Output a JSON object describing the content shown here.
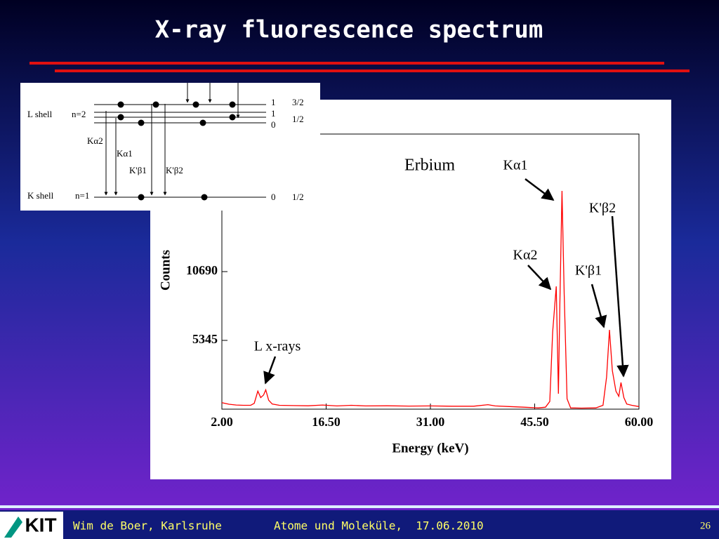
{
  "title": "X-ray fluorescence spectrum",
  "footer": {
    "logo": "KIT",
    "author": "Wim de Boer, Karlsruhe",
    "course": "Atome und Moleküle,  17.06.2010",
    "page": "26"
  },
  "diagram": {
    "l_shell": "L shell",
    "l_n": "n=2",
    "k_shell": "K shell",
    "k_n": "n=1",
    "l_levels": [
      [
        "1",
        "3/2"
      ],
      [
        "1",
        "1/2"
      ],
      [
        "0",
        ""
      ]
    ],
    "k_level": [
      "0",
      "1/2"
    ],
    "transitions": [
      "Kα2",
      "Kα1",
      "K'β1",
      "K'β2"
    ]
  },
  "chart_data": {
    "type": "line",
    "title": "Erbium",
    "x_label": "Energy (keV)",
    "y_label": "Counts",
    "color": "#ff0000",
    "x": [
      2,
      3,
      4,
      5,
      6,
      6.5,
      7.0,
      7.4,
      7.8,
      8.1,
      8.5,
      9,
      10,
      12,
      14,
      16,
      18,
      20,
      22,
      25,
      28,
      31,
      34,
      37,
      39,
      40,
      42,
      44,
      46,
      47.0,
      47.6,
      48.0,
      48.5,
      48.8,
      49.0,
      49.3,
      49.6,
      50.0,
      50.5,
      52,
      54,
      55.0,
      55.5,
      55.9,
      56.3,
      56.8,
      57.2,
      57.5,
      57.9,
      58.3,
      59,
      60
    ],
    "values": [
      500,
      380,
      320,
      300,
      300,
      450,
      1400,
      900,
      1100,
      1500,
      700,
      400,
      300,
      280,
      260,
      320,
      250,
      300,
      250,
      260,
      240,
      250,
      230,
      230,
      350,
      250,
      200,
      150,
      100,
      150,
      600,
      6000,
      9545,
      1200,
      8000,
      16960,
      9000,
      800,
      100,
      80,
      100,
      300,
      2500,
      6160,
      3000,
      1400,
      1000,
      2070,
      900,
      400,
      300,
      200
    ],
    "xlim": [
      2,
      60
    ],
    "ylim": [
      0,
      21380
    ],
    "xticks": [
      {
        "value": 2,
        "label": "2.00"
      },
      {
        "value": 16.5,
        "label": "16.50"
      },
      {
        "value": 31,
        "label": "31.00"
      },
      {
        "value": 45.5,
        "label": "45.50"
      },
      {
        "value": 60,
        "label": "60.00"
      }
    ],
    "yticks": [
      5345,
      10690
    ],
    "annotations": [
      "L x-rays",
      "Kα2",
      "Kα1",
      "K'β1",
      "K'β2"
    ]
  }
}
